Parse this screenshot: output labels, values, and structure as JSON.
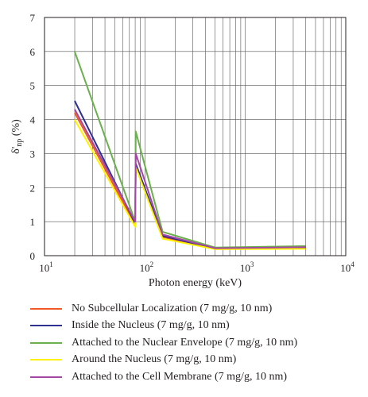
{
  "chart_data": {
    "type": "line",
    "xscale": "log",
    "xlim": [
      10,
      10000
    ],
    "ylim": [
      0,
      7
    ],
    "xlabel": "Photon energy (keV)",
    "ylabel": "δ'np (%)",
    "ylabel_main": "δ'",
    "ylabel_sub": "np",
    "ylabel_tail": " (%)",
    "yticks": [
      "0",
      "1",
      "2",
      "3",
      "4",
      "5",
      "6",
      "7"
    ],
    "xticks": [
      {
        "base": "10",
        "exp": "1"
      },
      {
        "base": "10",
        "exp": "2"
      },
      {
        "base": "10",
        "exp": "3"
      },
      {
        "base": "10",
        "exp": "4"
      }
    ],
    "grid": true,
    "legend_position": "below",
    "series": [
      {
        "name": "No Subcellular Localization (7 mg/g, 10 nm)",
        "color": "#f15a24",
        "x": [
          20,
          80,
          81,
          150,
          500,
          4000
        ],
        "y": [
          4.2,
          0.9,
          2.7,
          0.55,
          0.2,
          0.22
        ]
      },
      {
        "name": "Inside the Nucleus (7 mg/g, 10 nm)",
        "color": "#2e3192",
        "x": [
          20,
          80,
          81,
          150,
          500,
          4000
        ],
        "y": [
          4.55,
          0.95,
          2.7,
          0.58,
          0.21,
          0.23
        ]
      },
      {
        "name": "Attached to the Nuclear Envelope (7 mg/g, 10 nm)",
        "color": "#6ab04c",
        "x": [
          20,
          80,
          81,
          150,
          500,
          4000
        ],
        "y": [
          6.0,
          1.0,
          3.65,
          0.7,
          0.24,
          0.28
        ]
      },
      {
        "name": "Around the Nucleus (7 mg/g, 10 nm)",
        "color": "#fff200",
        "x": [
          20,
          80,
          81,
          150,
          500,
          4000
        ],
        "y": [
          4.0,
          0.85,
          2.6,
          0.5,
          0.19,
          0.2
        ]
      },
      {
        "name": "Attached to the Cell Membrane (7 mg/g, 10 nm)",
        "color": "#a347a3",
        "x": [
          20,
          80,
          81,
          150,
          500,
          4000
        ],
        "y": [
          4.3,
          1.0,
          3.0,
          0.62,
          0.22,
          0.25
        ]
      }
    ]
  }
}
